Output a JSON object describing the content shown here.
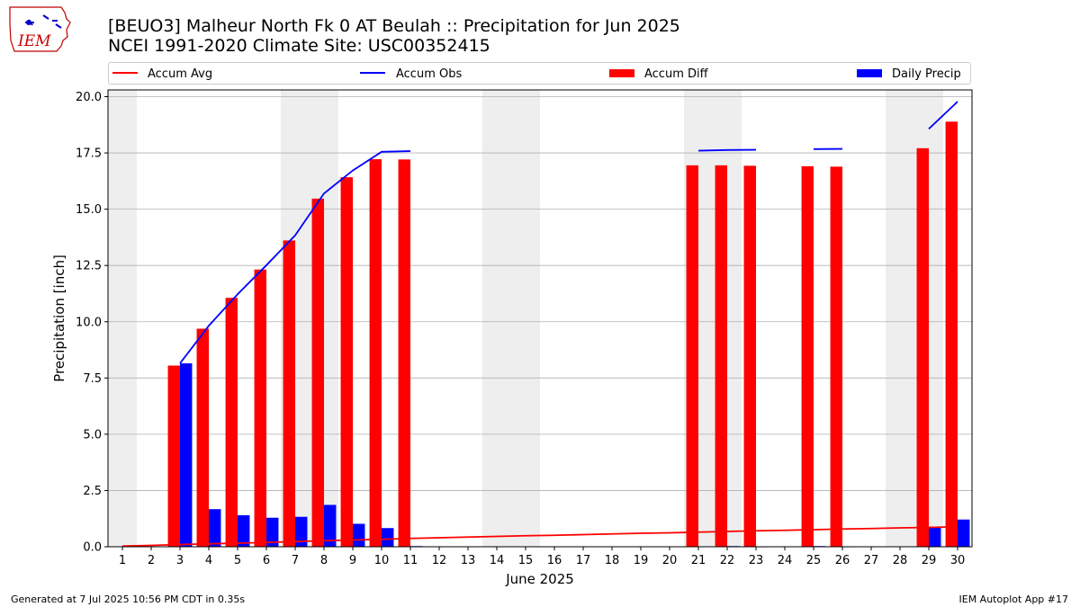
{
  "title_line1": "[BEUO3] Malheur North Fk 0 AT Beulah :: Precipitation for Jun 2025",
  "title_line2": "NCEI 1991-2020 Climate Site: USC00352415",
  "logo_text": "IEM",
  "footer_left": "Generated at 7 Jul 2025 10:56 PM CDT in 0.35s",
  "footer_right": "IEM Autoplot App #17",
  "colors": {
    "avg": "#ff0000",
    "obs": "#0000ff",
    "diff": "#ff0000",
    "daily": "#0000ff",
    "weekend": "#eeeeee",
    "grid": "#b0b0b0"
  },
  "chart_data": {
    "type": "bar",
    "xlabel": "June 2025",
    "ylabel": "Precipitation [inch]",
    "ylim": [
      0,
      20.3
    ],
    "xlim": [
      0.5,
      30.5
    ],
    "grid": true,
    "legend_position": "top",
    "legend": [
      "Accum Avg",
      "Accum Obs",
      "Accum Diff",
      "Daily Precip"
    ],
    "days": [
      1,
      2,
      3,
      4,
      5,
      6,
      7,
      8,
      9,
      10,
      11,
      12,
      13,
      14,
      15,
      16,
      17,
      18,
      19,
      20,
      21,
      22,
      23,
      24,
      25,
      26,
      27,
      28,
      29,
      30
    ],
    "y_ticks": [
      0,
      2.5,
      5,
      7.5,
      10,
      12.5,
      15,
      17.5,
      20
    ],
    "y_tick_labels": [
      "0.0",
      "2.5",
      "5.0",
      "7.5",
      "10.0",
      "12.5",
      "15.0",
      "17.5",
      "20.0"
    ],
    "weekend_spans": [
      [
        0.5,
        1.5
      ],
      [
        6.5,
        8.5
      ],
      [
        13.5,
        15.5
      ],
      [
        20.5,
        22.5
      ],
      [
        27.5,
        29.5
      ]
    ],
    "series": [
      {
        "name": "Accum Avg",
        "kind": "line",
        "values": [
          0.03,
          0.06,
          0.1,
          0.13,
          0.16,
          0.19,
          0.23,
          0.27,
          0.3,
          0.33,
          0.37,
          0.4,
          0.43,
          0.46,
          0.49,
          0.51,
          0.54,
          0.57,
          0.6,
          0.62,
          0.65,
          0.68,
          0.71,
          0.73,
          0.76,
          0.79,
          0.81,
          0.84,
          0.86,
          0.89
        ]
      },
      {
        "name": "Accum Obs",
        "kind": "line",
        "values": [
          null,
          null,
          8.15,
          9.82,
          11.22,
          12.51,
          13.84,
          15.7,
          16.72,
          17.55,
          17.58,
          null,
          null,
          null,
          null,
          null,
          null,
          null,
          null,
          null,
          17.6,
          17.63,
          17.64,
          null,
          17.67,
          17.68,
          null,
          null,
          18.57,
          19.78
        ]
      },
      {
        "name": "Accum Diff",
        "kind": "bar",
        "offset": -0.21,
        "values": [
          null,
          null,
          8.05,
          9.69,
          11.06,
          12.32,
          13.61,
          15.47,
          16.42,
          17.22,
          17.21,
          null,
          null,
          null,
          null,
          null,
          null,
          null,
          null,
          null,
          16.95,
          16.95,
          16.93,
          null,
          16.91,
          16.89,
          null,
          null,
          17.71,
          18.89
        ]
      },
      {
        "name": "Daily Precip",
        "kind": "bar",
        "offset": 0.21,
        "values": [
          null,
          null,
          8.15,
          1.67,
          1.4,
          1.29,
          1.33,
          1.86,
          1.02,
          0.83,
          0.03,
          null,
          null,
          null,
          null,
          null,
          null,
          null,
          null,
          null,
          0.02,
          0.03,
          0.01,
          null,
          0.03,
          0.01,
          null,
          null,
          0.89,
          1.21
        ]
      }
    ]
  }
}
